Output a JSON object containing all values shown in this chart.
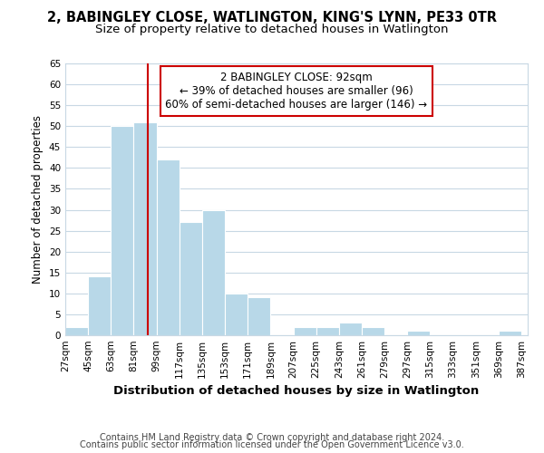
{
  "title": "2, BABINGLEY CLOSE, WATLINGTON, KING'S LYNN, PE33 0TR",
  "subtitle": "Size of property relative to detached houses in Watlington",
  "xlabel": "Distribution of detached houses by size in Watlington",
  "ylabel": "Number of detached properties",
  "bar_left_edges": [
    27,
    45,
    63,
    81,
    99,
    117,
    135,
    153,
    171,
    189,
    207,
    225,
    243,
    261,
    279,
    297,
    315,
    333,
    351,
    369
  ],
  "bar_heights": [
    2,
    14,
    50,
    51,
    42,
    27,
    30,
    10,
    9,
    0,
    2,
    2,
    3,
    2,
    0,
    1,
    0,
    0,
    0,
    1
  ],
  "bin_width": 18,
  "bar_color": "#b8d8e8",
  "property_line_x": 92,
  "tick_labels": [
    "27sqm",
    "45sqm",
    "63sqm",
    "81sqm",
    "99sqm",
    "117sqm",
    "135sqm",
    "153sqm",
    "171sqm",
    "189sqm",
    "207sqm",
    "225sqm",
    "243sqm",
    "261sqm",
    "279sqm",
    "297sqm",
    "315sqm",
    "333sqm",
    "351sqm",
    "369sqm",
    "387sqm"
  ],
  "ylim": [
    0,
    65
  ],
  "yticks": [
    0,
    5,
    10,
    15,
    20,
    25,
    30,
    35,
    40,
    45,
    50,
    55,
    60,
    65
  ],
  "annotation_line0": "2 BABINGLEY CLOSE: 92sqm",
  "annotation_line1": "← 39% of detached houses are smaller (96)",
  "annotation_line2": "60% of semi-detached houses are larger (146) →",
  "red_line_color": "#cc0000",
  "footer1": "Contains HM Land Registry data © Crown copyright and database right 2024.",
  "footer2": "Contains public sector information licensed under the Open Government Licence v3.0.",
  "bg_color": "#ffffff",
  "grid_color": "#c8d8e4",
  "title_fontsize": 10.5,
  "subtitle_fontsize": 9.5,
  "xlabel_fontsize": 9.5,
  "ylabel_fontsize": 8.5,
  "tick_fontsize": 7.5,
  "annotation_fontsize": 8.5,
  "footer_fontsize": 7.0
}
